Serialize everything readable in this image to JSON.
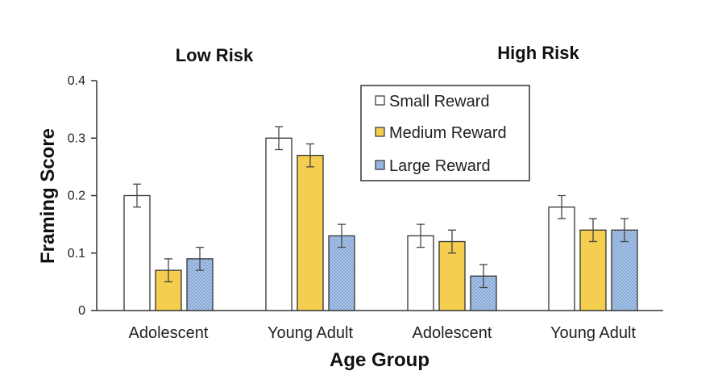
{
  "chart_data": {
    "type": "bar",
    "panel_titles": [
      "Low Risk",
      "High Risk"
    ],
    "groups": [
      {
        "panel": "Low Risk",
        "category": "Adolescent",
        "values": [
          0.2,
          0.07,
          0.09
        ],
        "errors": [
          0.02,
          0.02,
          0.02
        ]
      },
      {
        "panel": "Low Risk",
        "category": "Young Adult",
        "values": [
          0.3,
          0.27,
          0.13
        ],
        "errors": [
          0.02,
          0.02,
          0.02
        ]
      },
      {
        "panel": "High Risk",
        "category": "Adolescent",
        "values": [
          0.13,
          0.12,
          0.06
        ],
        "errors": [
          0.02,
          0.02,
          0.02
        ]
      },
      {
        "panel": "High Risk",
        "category": "Young Adult",
        "values": [
          0.18,
          0.14,
          0.14
        ],
        "errors": [
          0.02,
          0.02,
          0.02
        ]
      }
    ],
    "series": [
      {
        "name": "Small Reward",
        "color": "#ffffff"
      },
      {
        "name": "Medium Reward",
        "color": "#f5cd4f"
      },
      {
        "name": "Large Reward",
        "color": "#a9c6e8"
      }
    ],
    "xlabel": "Age Group",
    "ylabel": "Framing Score",
    "ylim": [
      0,
      0.4
    ],
    "yticks": [
      "0",
      "0.1",
      "0.2",
      "0.3",
      "0.4"
    ],
    "legend_position": "top-right",
    "grid": false
  }
}
